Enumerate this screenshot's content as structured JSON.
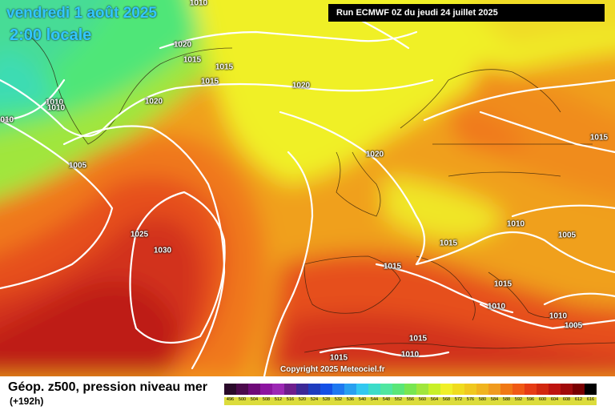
{
  "header": {
    "date": "vendredi 1 août 2025",
    "time": "2:00 locale",
    "run": "Run ECMWF 0Z du jeudi 24 juillet 2025"
  },
  "copyright": "Copyright 2025 Meteociel.fr",
  "caption": {
    "title": "Géop. z500, pression niveau mer",
    "subtitle": "(+192h)"
  },
  "isobar_labels": [
    "1010",
    "1020",
    "1015",
    "1015",
    "1015",
    "1010",
    "1010",
    "1010",
    "1020",
    "1020",
    "1005",
    "1020",
    "1015",
    "1025",
    "1030",
    "1010",
    "1015",
    "1005",
    "1015",
    "1015",
    "1010",
    "1010",
    "1005",
    "1015",
    "1015",
    "1010"
  ],
  "legend": {
    "ticks": [
      "496",
      "500",
      "504",
      "508",
      "512",
      "516",
      "520",
      "524",
      "528",
      "532",
      "536",
      "540",
      "544",
      "548",
      "552",
      "556",
      "560",
      "564",
      "568",
      "572",
      "576",
      "580",
      "584",
      "588",
      "592",
      "596",
      "600",
      "604",
      "608",
      "612",
      "616"
    ],
    "colors": [
      "#2a0a2a",
      "#4b0a4b",
      "#6e0a78",
      "#8c14a0",
      "#9c28b4",
      "#6e1e8c",
      "#3c2896",
      "#1e3cbe",
      "#1450e6",
      "#1e78f0",
      "#28a0f0",
      "#32c8f0",
      "#3cdcc8",
      "#50e6a0",
      "#5ae678",
      "#78e650",
      "#a0e63c",
      "#c8f028",
      "#f0f028",
      "#f0dc1e",
      "#f0c81e",
      "#f0b41e",
      "#f09b1e",
      "#f07814",
      "#f05a14",
      "#e63c14",
      "#d2280f",
      "#be140f",
      "#a00a0a",
      "#780000",
      "#000000"
    ]
  }
}
